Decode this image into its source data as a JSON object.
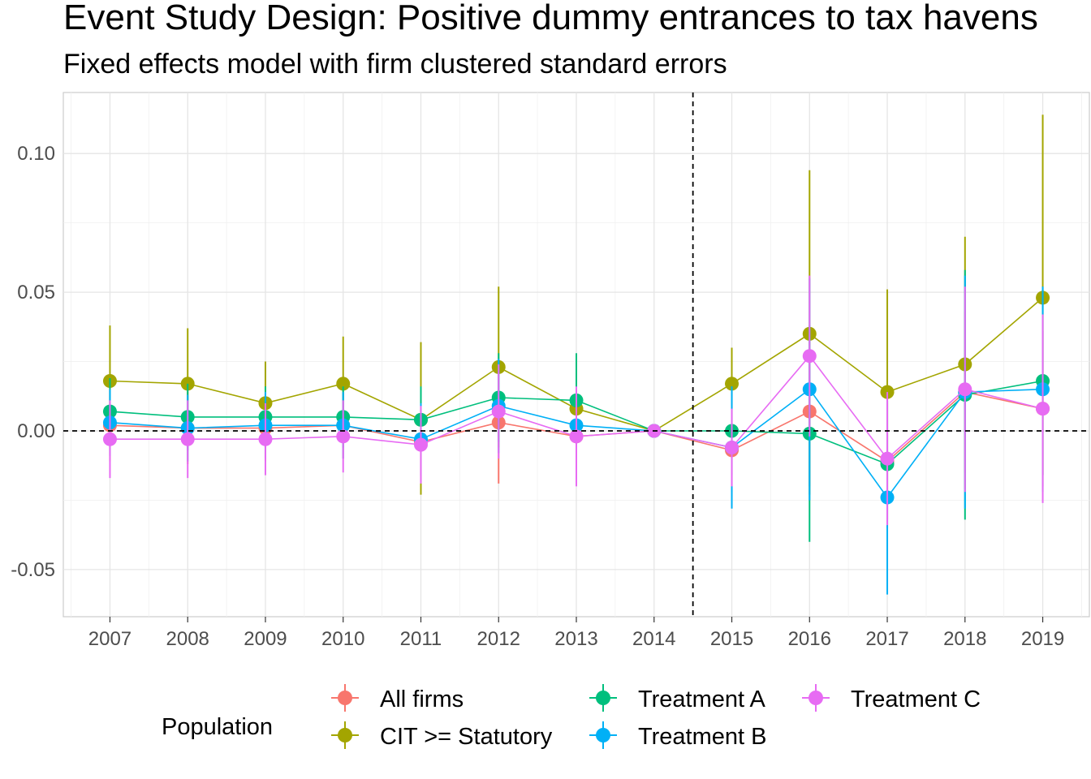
{
  "chart_data": {
    "type": "line",
    "title": "Event Study Design: Positive dummy entrances to tax havens",
    "subtitle": "Fixed effects model with firm clustered standard errors",
    "xlabel": "",
    "ylabel": "",
    "x": [
      2007,
      2008,
      2009,
      2010,
      2011,
      2012,
      2013,
      2014,
      2015,
      2016,
      2017,
      2018,
      2019
    ],
    "x_tick_labels": [
      "2007",
      "2008",
      "2009",
      "2010",
      "2011",
      "2012",
      "2013",
      "2014",
      "2015",
      "2016",
      "2017",
      "2018",
      "2019"
    ],
    "xlim": [
      2006.4,
      2019.6
    ],
    "ylim": [
      -0.067,
      0.122
    ],
    "y_ticks": [
      -0.05,
      0.0,
      0.05,
      0.1
    ],
    "y_tick_labels": [
      "-0.05",
      "0.00",
      "0.05",
      "0.10"
    ],
    "grid": true,
    "reference_lines": {
      "horizontal_y": 0.0,
      "vertical_x": 2014.5
    },
    "legend": {
      "title": "Population",
      "position": "bottom"
    },
    "series": [
      {
        "name": "All firms",
        "color": "#F8766D",
        "values": [
          0.002,
          0.001,
          0.001,
          0.002,
          -0.004,
          0.003,
          -0.002,
          0.0,
          -0.007,
          0.007,
          -0.011,
          0.014,
          0.008
        ],
        "lower": [
          -0.011,
          -0.012,
          -0.011,
          -0.01,
          -0.018,
          -0.019,
          -0.015,
          0.0,
          -0.022,
          -0.02,
          -0.032,
          -0.015,
          -0.02
        ],
        "upper": [
          0.015,
          0.014,
          0.013,
          0.014,
          0.01,
          0.025,
          0.011,
          0.0,
          0.008,
          0.034,
          0.01,
          0.043,
          0.036
        ]
      },
      {
        "name": "CIT >= Statutory",
        "color": "#A3A500",
        "values": [
          0.018,
          0.017,
          0.01,
          0.017,
          0.004,
          0.023,
          0.008,
          0.0,
          0.017,
          0.035,
          0.014,
          0.024,
          0.048
        ],
        "lower": [
          -0.003,
          -0.003,
          -0.005,
          0.001,
          -0.023,
          -0.006,
          -0.011,
          0.0,
          0.004,
          -0.023,
          -0.022,
          -0.021,
          -0.016
        ],
        "upper": [
          0.038,
          0.037,
          0.025,
          0.034,
          0.032,
          0.052,
          0.027,
          0.0,
          0.03,
          0.094,
          0.051,
          0.07,
          0.114
        ]
      },
      {
        "name": "Treatment A",
        "color": "#00BF7D",
        "values": [
          0.007,
          0.005,
          0.005,
          0.005,
          0.004,
          0.012,
          0.011,
          0.0,
          0.0,
          -0.001,
          -0.012,
          0.013,
          0.018
        ],
        "lower": [
          -0.005,
          -0.007,
          -0.006,
          -0.006,
          -0.008,
          -0.004,
          -0.006,
          0.0,
          -0.016,
          -0.04,
          -0.035,
          -0.032,
          -0.016
        ],
        "upper": [
          0.019,
          0.017,
          0.016,
          0.016,
          0.016,
          0.028,
          0.028,
          0.0,
          0.016,
          0.038,
          0.011,
          0.058,
          0.052
        ]
      },
      {
        "name": "Treatment B",
        "color": "#00B0F6",
        "values": [
          0.003,
          0.001,
          0.002,
          0.002,
          -0.003,
          0.009,
          0.002,
          0.0,
          -0.006,
          0.015,
          -0.024,
          0.014,
          0.015
        ],
        "lower": [
          -0.009,
          -0.011,
          -0.01,
          -0.01,
          -0.016,
          -0.008,
          -0.012,
          0.0,
          -0.028,
          -0.025,
          -0.059,
          -0.028,
          -0.022
        ],
        "upper": [
          0.015,
          0.013,
          0.014,
          0.014,
          0.01,
          0.026,
          0.016,
          0.0,
          0.016,
          0.055,
          0.011,
          0.056,
          0.052
        ]
      },
      {
        "name": "Treatment C",
        "color": "#E76BF3",
        "values": [
          -0.003,
          -0.003,
          -0.003,
          -0.002,
          -0.005,
          0.007,
          -0.002,
          0.0,
          -0.006,
          0.027,
          -0.01,
          0.015,
          0.008
        ],
        "lower": [
          -0.017,
          -0.017,
          -0.016,
          -0.015,
          -0.019,
          -0.01,
          -0.02,
          0.0,
          -0.02,
          -0.002,
          -0.034,
          -0.022,
          -0.026
        ],
        "upper": [
          0.011,
          0.011,
          0.01,
          0.011,
          0.009,
          0.024,
          0.016,
          0.0,
          0.008,
          0.056,
          0.014,
          0.052,
          0.042
        ]
      }
    ]
  }
}
